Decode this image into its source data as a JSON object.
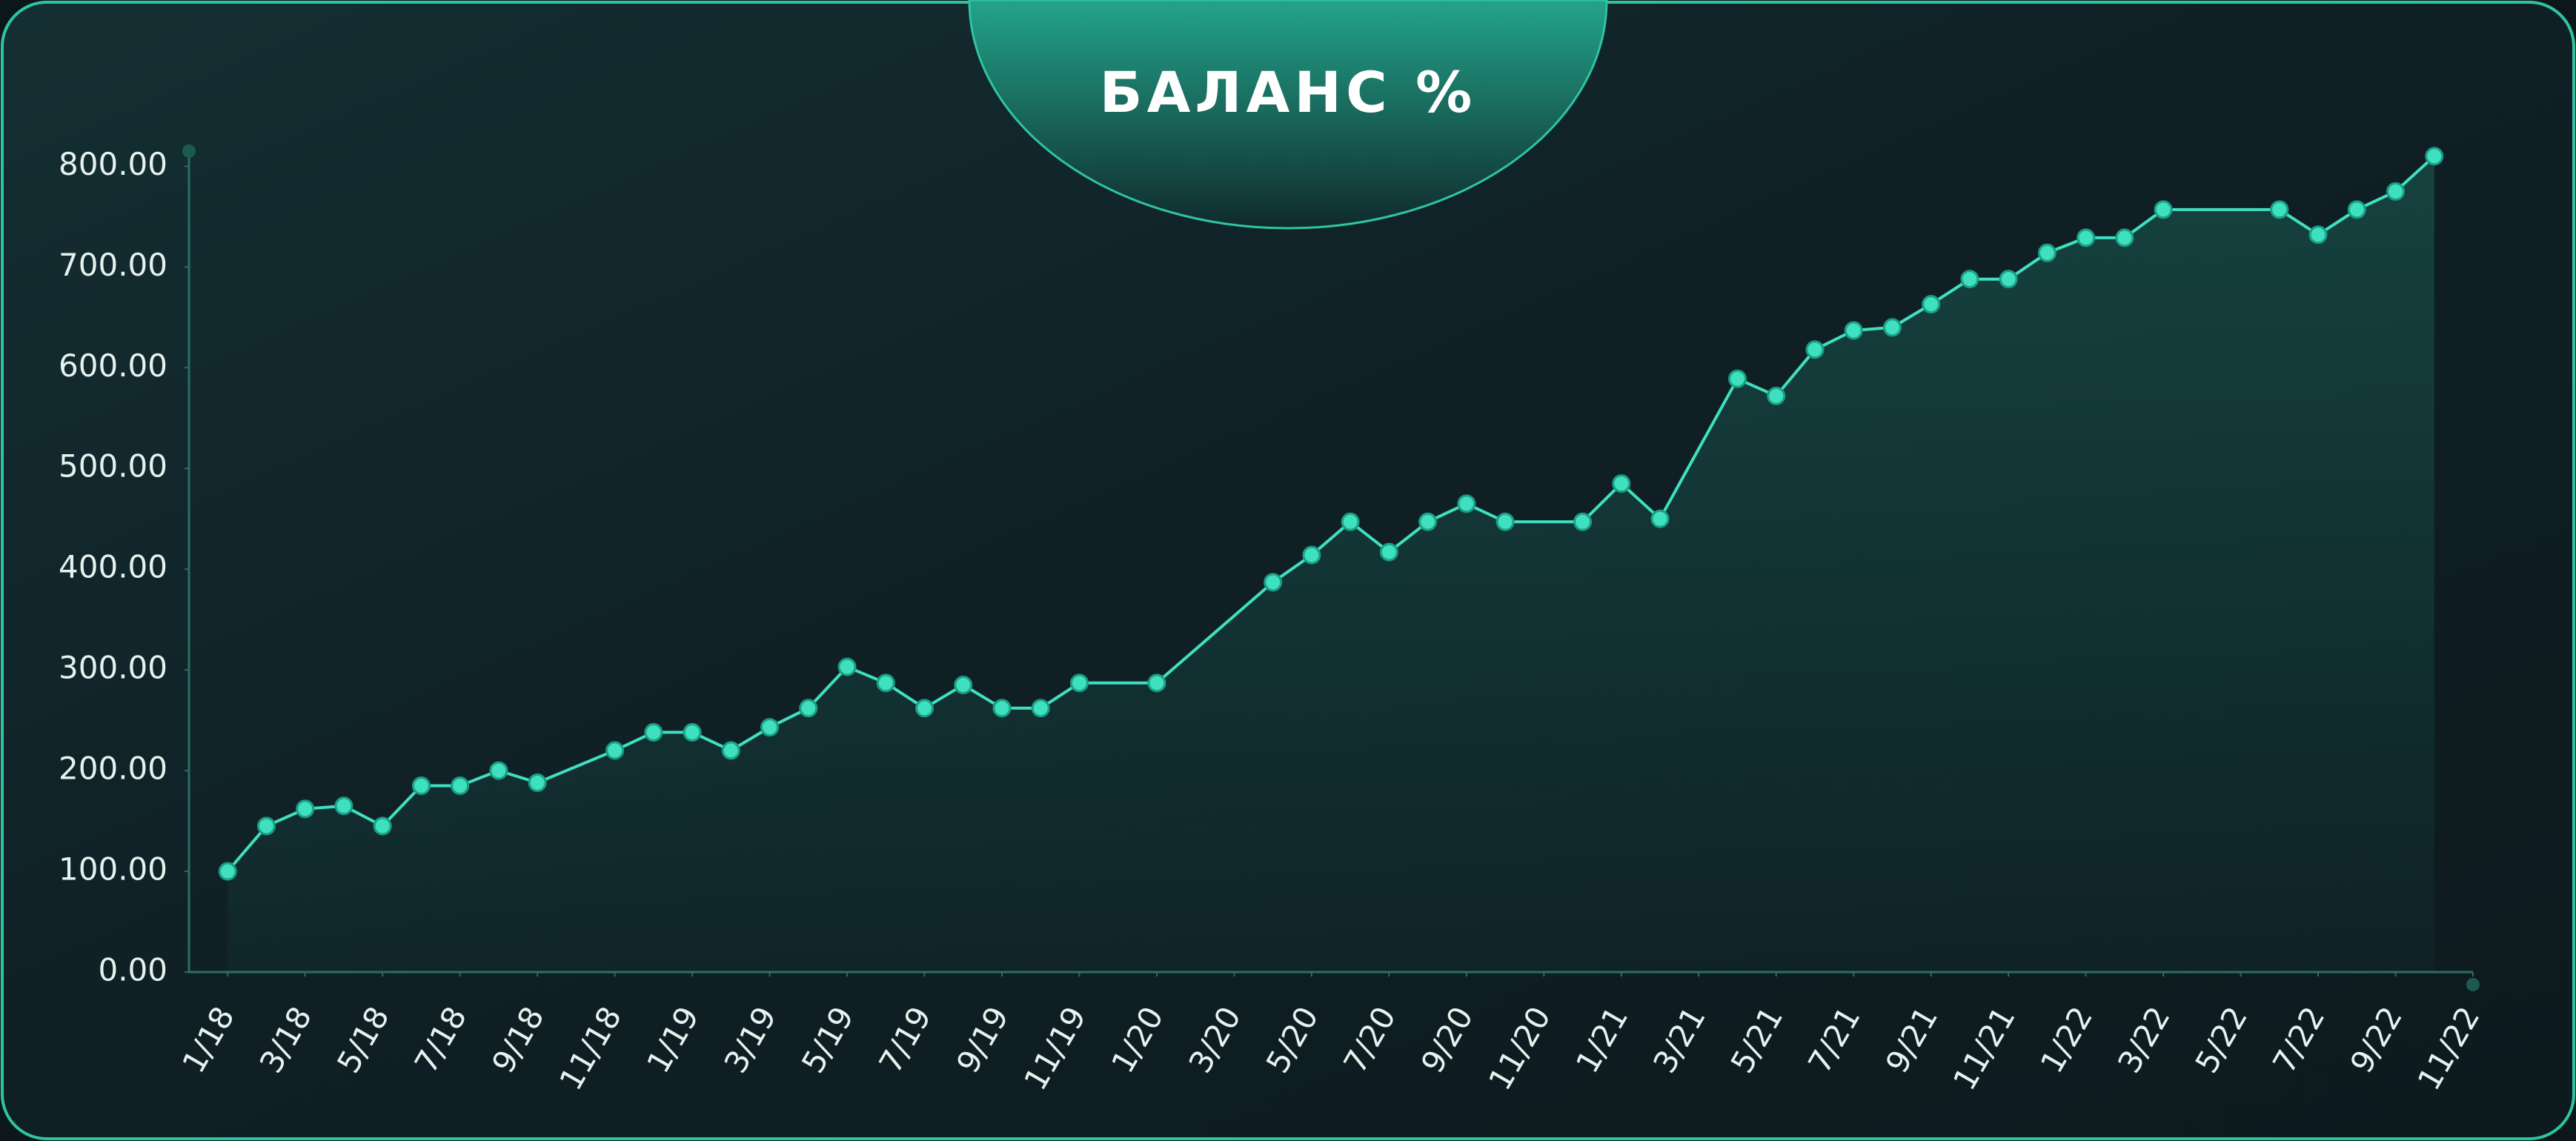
{
  "chart_data": {
    "type": "line",
    "title": "БАЛАНС %",
    "x": [
      "1/18",
      "2/18",
      "3/18",
      "4/18",
      "5/18",
      "6/18",
      "7/18",
      "8/18",
      "9/18",
      "11/18",
      "12/18",
      "1/19",
      "2/19",
      "3/19",
      "4/19",
      "5/19",
      "6/19",
      "7/19",
      "8/19",
      "9/19",
      "10/19",
      "11/19",
      "1/20",
      "4/20",
      "5/20",
      "6/20",
      "7/20",
      "8/20",
      "9/20",
      "10/20",
      "12/20",
      "1/21",
      "2/21",
      "4/21",
      "5/21",
      "6/21",
      "7/21",
      "8/21",
      "9/21",
      "10/21",
      "11/21",
      "12/21",
      "1/22",
      "2/22",
      "3/22",
      "6/22",
      "7/22",
      "8/22",
      "9/22",
      "10/22"
    ],
    "series": [
      {
        "name": "БАЛАНС %",
        "color": "#3ee0c0",
        "values": [
          100,
          145,
          162,
          165,
          145,
          185,
          185,
          200,
          188,
          220,
          238,
          238,
          220,
          243,
          262,
          303,
          287,
          262,
          285,
          262,
          262,
          287,
          287,
          387,
          414,
          447,
          417,
          447,
          465,
          447,
          447,
          485,
          450,
          589,
          572,
          618,
          637,
          640,
          663,
          688,
          688,
          714,
          729,
          729,
          757,
          757,
          732,
          757,
          775,
          810
        ]
      }
    ],
    "xlim": [
      "12/17",
      "11/22"
    ],
    "xticks": [
      "1/18",
      "3/18",
      "5/18",
      "7/18",
      "9/18",
      "11/18",
      "1/19",
      "3/19",
      "5/19",
      "7/19",
      "9/19",
      "11/19",
      "1/20",
      "3/20",
      "5/20",
      "7/20",
      "9/20",
      "11/20",
      "1/21",
      "3/21",
      "5/21",
      "7/21",
      "9/21",
      "11/21",
      "1/22",
      "3/22",
      "5/22",
      "7/22",
      "9/22",
      "11/22"
    ],
    "ylim": [
      0,
      815
    ],
    "yticks": [
      {
        "value": 0,
        "label": "0.00"
      },
      {
        "value": 100,
        "label": "100.00"
      },
      {
        "value": 200,
        "label": "200.00"
      },
      {
        "value": 300,
        "label": "300.00"
      },
      {
        "value": 400,
        "label": "400.00"
      },
      {
        "value": 500,
        "label": "500.00"
      },
      {
        "value": 600,
        "label": "600.00"
      },
      {
        "value": 700,
        "label": "700.00"
      },
      {
        "value": 800,
        "label": "800.00"
      }
    ]
  }
}
